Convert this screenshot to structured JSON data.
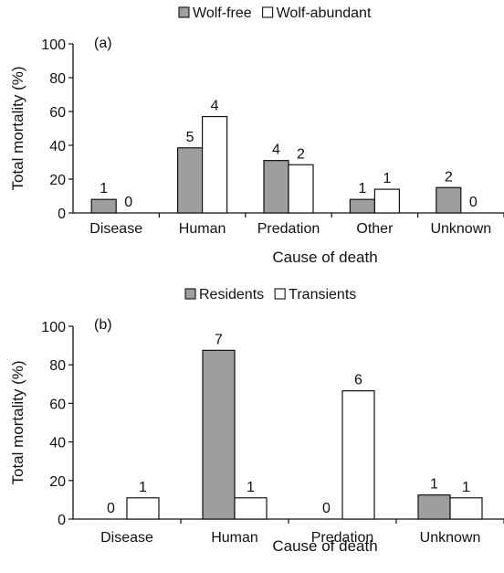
{
  "chart_data": [
    {
      "type": "bar",
      "panel_label": "(a)",
      "categories": [
        "Disease",
        "Human",
        "Predation",
        "Other",
        "Unknown"
      ],
      "series": [
        {
          "name": "Wolf-free",
          "color": "#9e9e9e",
          "values": [
            8,
            38.5,
            31,
            8,
            15
          ],
          "labels": [
            "1",
            "5",
            "4",
            "1",
            "2"
          ]
        },
        {
          "name": "Wolf-abundant",
          "color": "#ffffff",
          "values": [
            0,
            57,
            28.5,
            14,
            0
          ],
          "labels": [
            "0",
            "4",
            "2",
            "1",
            "0"
          ]
        }
      ],
      "xlabel": "Cause of death",
      "ylabel": "Total mortality (%)",
      "ylim": [
        0,
        100
      ],
      "yticks": [
        0,
        20,
        40,
        60,
        80,
        100
      ],
      "legend": "top-center",
      "grid": false
    },
    {
      "type": "bar",
      "panel_label": "(b)",
      "categories": [
        "Disease",
        "Human",
        "Predation",
        "Unknown"
      ],
      "series": [
        {
          "name": "Residents",
          "color": "#9e9e9e",
          "values": [
            0,
            87.5,
            0,
            12.5
          ],
          "labels": [
            "0",
            "7",
            "0",
            "1"
          ]
        },
        {
          "name": "Transients",
          "color": "#ffffff",
          "values": [
            11,
            11,
            66.5,
            11
          ],
          "labels": [
            "1",
            "1",
            "6",
            "1"
          ]
        }
      ],
      "xlabel": "Cause of death",
      "ylabel": "Total mortality (%)",
      "ylim": [
        0,
        100
      ],
      "yticks": [
        0,
        20,
        40,
        60,
        80,
        100
      ],
      "legend": "top-center",
      "grid": false
    }
  ]
}
